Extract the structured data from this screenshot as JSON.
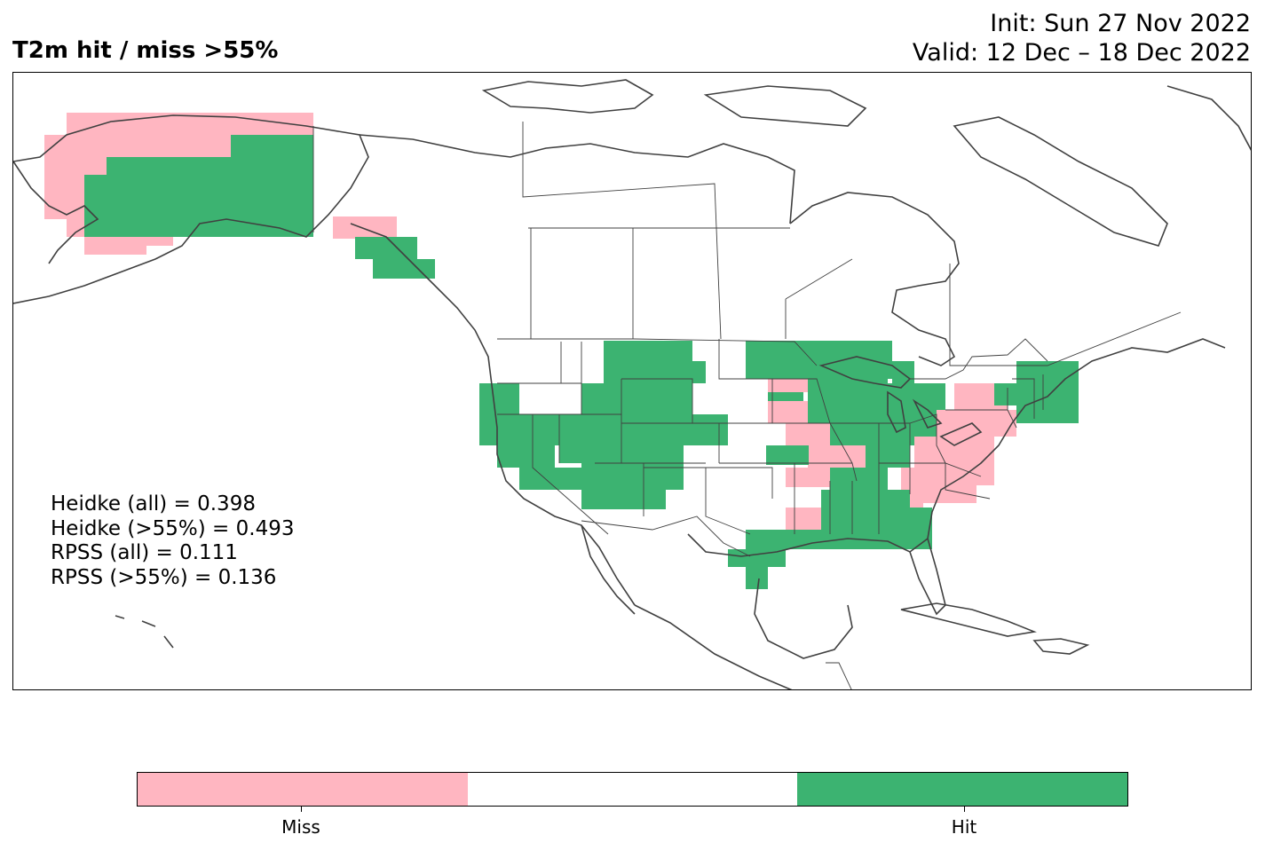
{
  "title_left": "T2m hit / miss  >55%",
  "title_init": "Init: Sun 27 Nov 2022",
  "title_valid": "Valid: 12 Dec – 18 Dec 2022",
  "stats": {
    "heidke_all": "Heidke (all) = 0.398",
    "heidke_55": "Heidke (>55%) = 0.493",
    "rpss_all": "RPSS (all) = 0.111",
    "rpss_55": "RPSS (>55%) = 0.136"
  },
  "colors": {
    "miss": "#ffb6c1",
    "neutral": "#ffffff",
    "hit": "#3cb371",
    "coast": "#404040"
  },
  "legend": {
    "miss_label": "Miss",
    "hit_label": "Hit"
  },
  "map": {
    "region": "North America",
    "categories": [
      "Miss",
      "Neutral",
      "Hit"
    ]
  }
}
